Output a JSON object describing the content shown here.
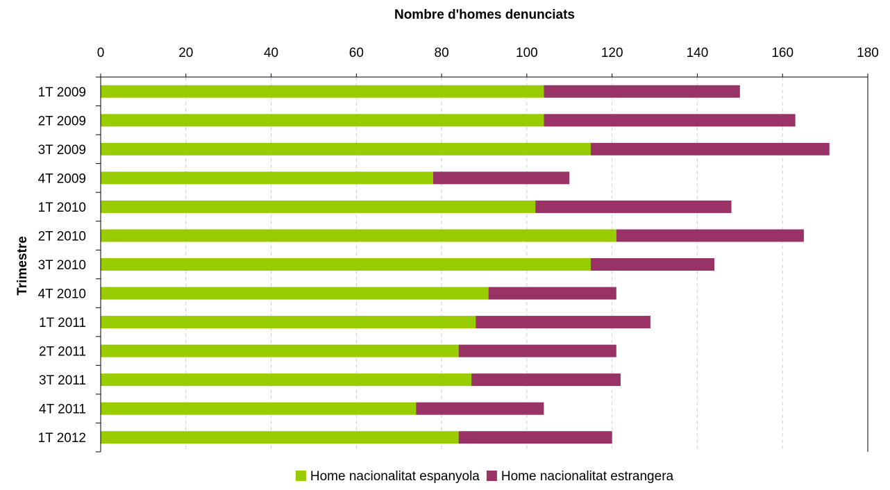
{
  "chart_data": {
    "type": "bar",
    "orientation": "horizontal",
    "stacked": true,
    "title": "Nombre d'homes denunciats",
    "xlabel": "Nombre d'homes denunciats",
    "ylabel": "Trimestre",
    "xlim": [
      0,
      180
    ],
    "x_ticks": [
      "0",
      "20",
      "40",
      "60",
      "80",
      "100",
      "120",
      "140",
      "160",
      "180"
    ],
    "x_axis_position": "top",
    "grid": "vertical dashed",
    "legend_position": "bottom",
    "categories": [
      "1T 2009",
      "2T 2009",
      "3T 2009",
      "4T 2009",
      "1T 2010",
      "2T 2010",
      "3T 2010",
      "4T 2010",
      "1T 2011",
      "2T 2011",
      "3T 2011",
      "4T 2011",
      "1T 2012"
    ],
    "series": [
      {
        "name": "Home nacionalitat espanyola",
        "color": "#99CC00",
        "values": [
          104,
          104,
          115,
          78,
          102,
          121,
          115,
          91,
          88,
          84,
          87,
          74,
          84
        ]
      },
      {
        "name": "Home nacionalitat estrangera",
        "color": "#993366",
        "values": [
          46,
          59,
          56,
          32,
          46,
          44,
          29,
          30,
          41,
          37,
          35,
          30,
          36
        ]
      }
    ]
  }
}
